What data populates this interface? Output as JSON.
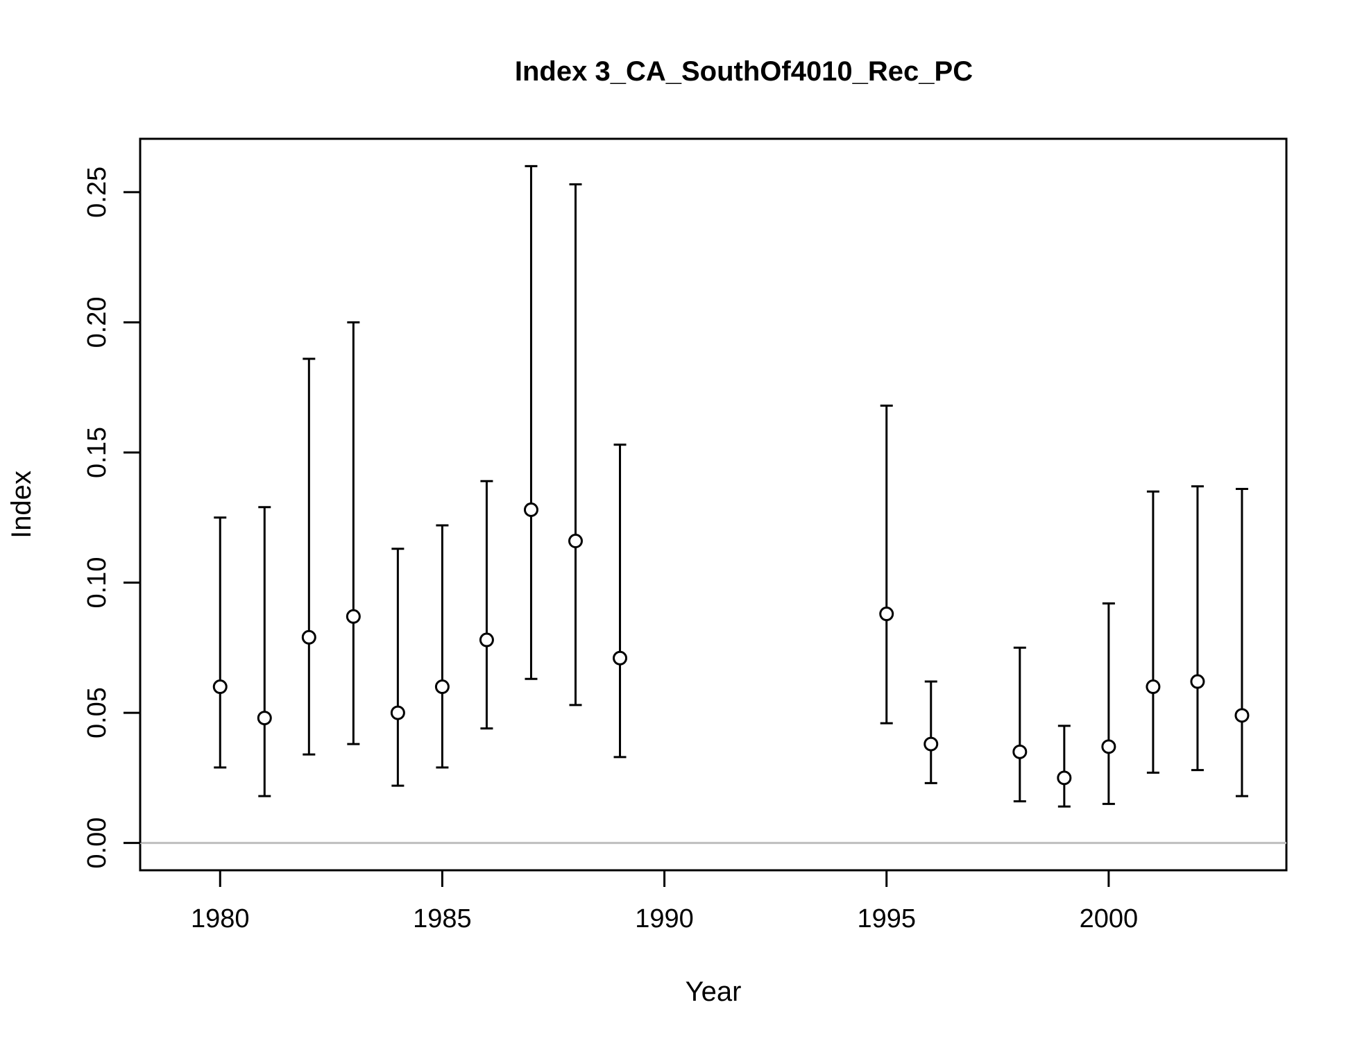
{
  "chart_data": {
    "type": "scatter",
    "title": "Index 3_CA_SouthOf4010_Rec_PC",
    "xlabel": "Year",
    "ylabel": "Index",
    "xlim": [
      1978.2,
      2004.0
    ],
    "ylim": [
      -0.0105,
      0.2705
    ],
    "xticks": [
      1980,
      1985,
      1990,
      1995,
      2000
    ],
    "yticks": [
      0.0,
      0.05,
      0.1,
      0.15,
      0.2,
      0.25
    ],
    "ytick_labels": [
      "0.00",
      "0.05",
      "0.10",
      "0.15",
      "0.20",
      "0.25"
    ],
    "reference_line_y": 0,
    "colors": {
      "points": "#000000",
      "reference_line": "#bebebe"
    },
    "points": [
      {
        "x": 1980,
        "y": 0.06,
        "lower": 0.029,
        "upper": 0.125
      },
      {
        "x": 1981,
        "y": 0.048,
        "lower": 0.018,
        "upper": 0.129
      },
      {
        "x": 1982,
        "y": 0.079,
        "lower": 0.034,
        "upper": 0.186
      },
      {
        "x": 1983,
        "y": 0.087,
        "lower": 0.038,
        "upper": 0.2
      },
      {
        "x": 1984,
        "y": 0.05,
        "lower": 0.022,
        "upper": 0.113
      },
      {
        "x": 1985,
        "y": 0.06,
        "lower": 0.029,
        "upper": 0.122
      },
      {
        "x": 1986,
        "y": 0.078,
        "lower": 0.044,
        "upper": 0.139
      },
      {
        "x": 1987,
        "y": 0.128,
        "lower": 0.063,
        "upper": 0.26
      },
      {
        "x": 1988,
        "y": 0.116,
        "lower": 0.053,
        "upper": 0.253
      },
      {
        "x": 1989,
        "y": 0.071,
        "lower": 0.033,
        "upper": 0.153
      },
      {
        "x": 1995,
        "y": 0.088,
        "lower": 0.046,
        "upper": 0.168
      },
      {
        "x": 1996,
        "y": 0.038,
        "lower": 0.023,
        "upper": 0.062
      },
      {
        "x": 1998,
        "y": 0.035,
        "lower": 0.016,
        "upper": 0.075
      },
      {
        "x": 1999,
        "y": 0.025,
        "lower": 0.014,
        "upper": 0.045
      },
      {
        "x": 2000,
        "y": 0.037,
        "lower": 0.015,
        "upper": 0.092
      },
      {
        "x": 2001,
        "y": 0.06,
        "lower": 0.027,
        "upper": 0.135
      },
      {
        "x": 2002,
        "y": 0.062,
        "lower": 0.028,
        "upper": 0.137
      },
      {
        "x": 2003,
        "y": 0.049,
        "lower": 0.018,
        "upper": 0.136
      }
    ]
  }
}
